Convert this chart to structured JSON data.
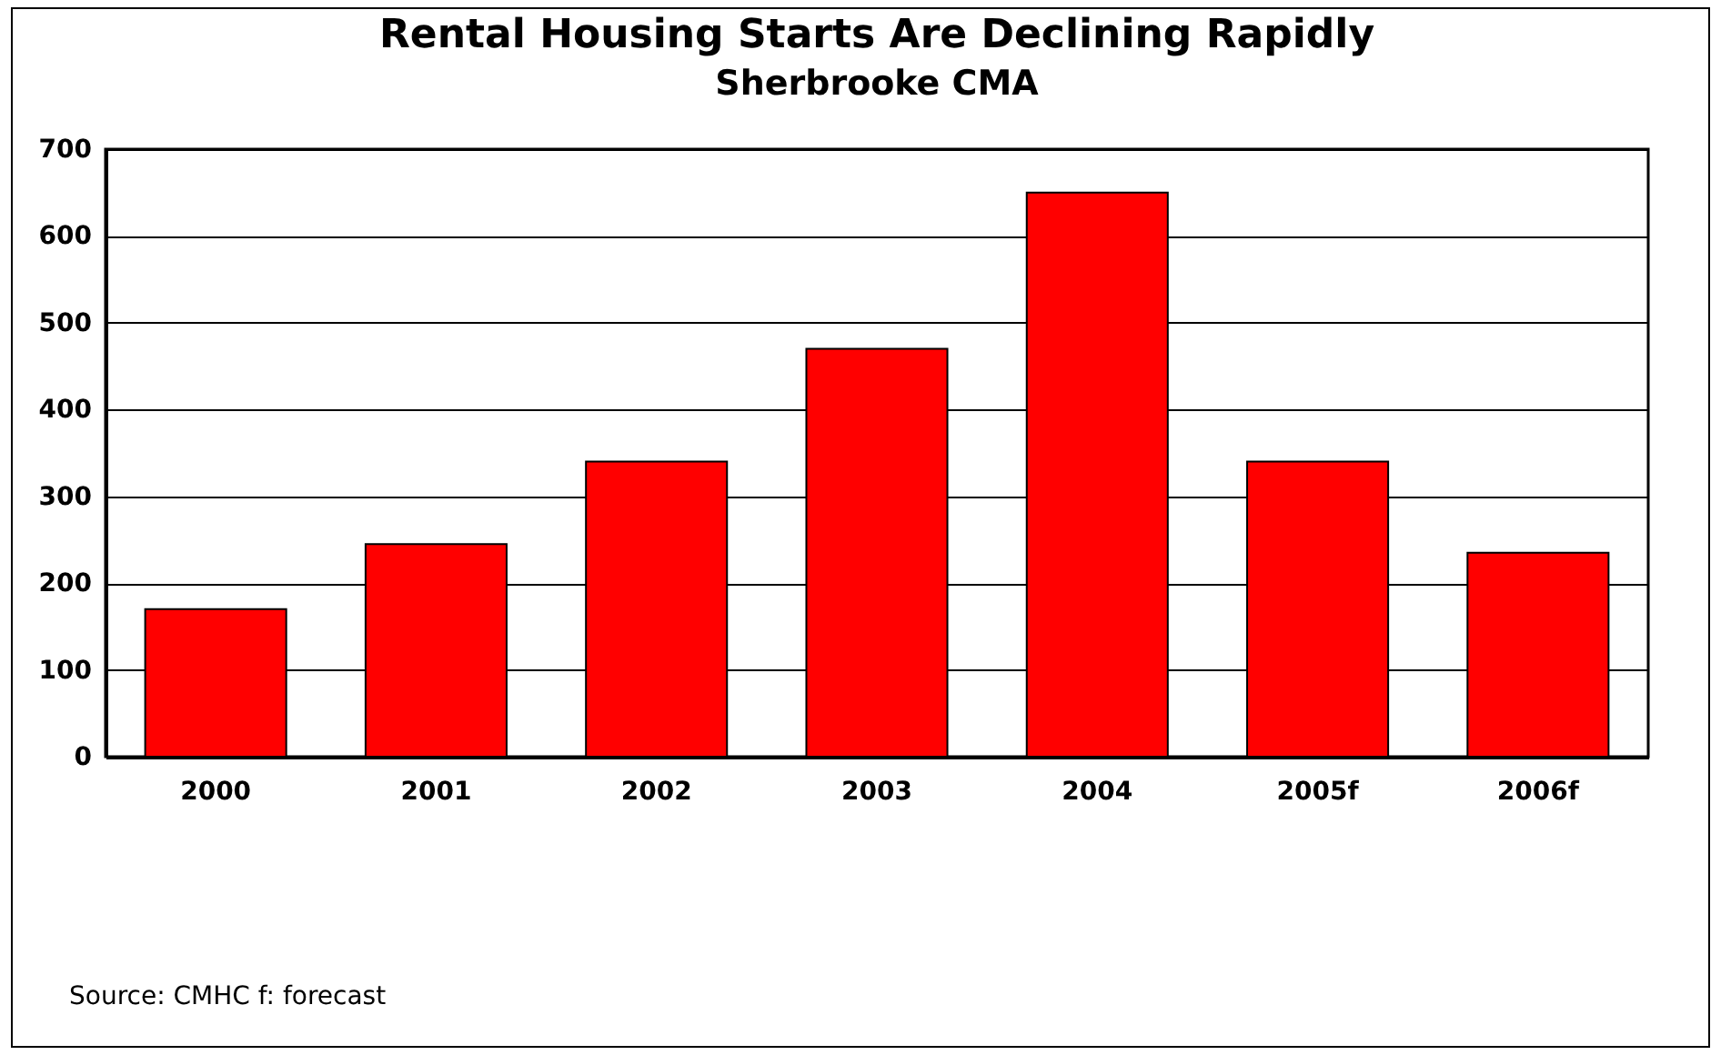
{
  "chart_data": {
    "type": "bar",
    "title": "Rental Housing Starts Are Declining Rapidly",
    "subtitle": "Sherbrooke CMA",
    "categories": [
      "2000",
      "2001",
      "2002",
      "2003",
      "2004",
      "2005f",
      "2006f"
    ],
    "values": [
      170,
      245,
      340,
      470,
      650,
      340,
      235
    ],
    "color": "#ff0000",
    "ylim": [
      0,
      700
    ],
    "yticks": [
      0,
      100,
      200,
      300,
      400,
      500,
      600,
      700
    ],
    "grid": "y",
    "annotations": [
      "Source: CMHC  f: forecast"
    ]
  }
}
